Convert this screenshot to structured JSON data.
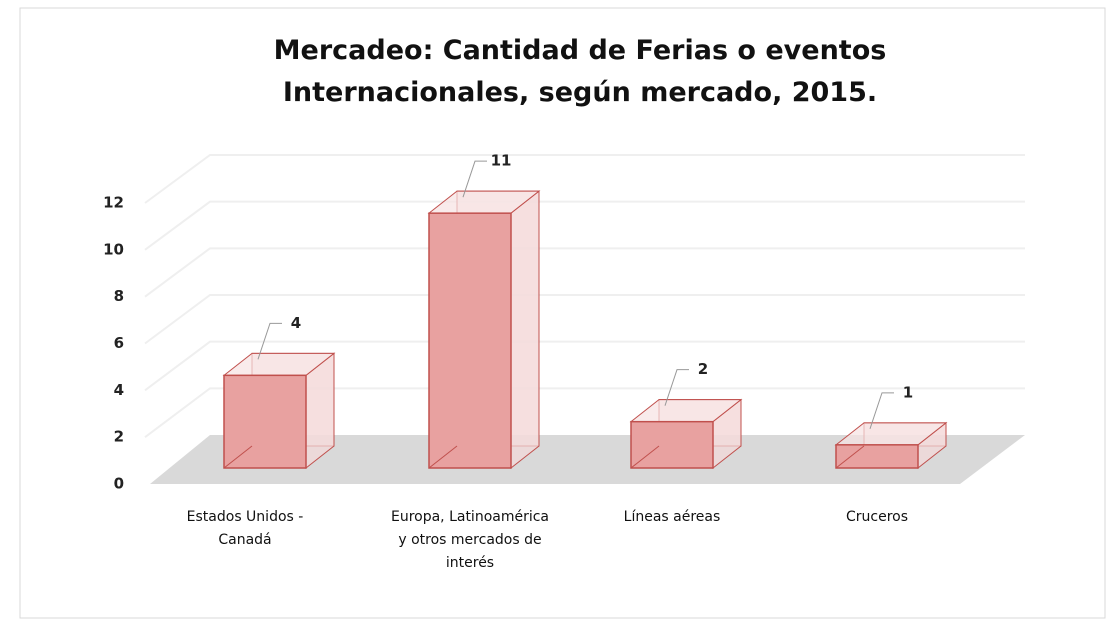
{
  "chart_data": {
    "type": "bar3d",
    "title": "Mercadeo: Cantidad de Ferias o eventos Internacionales, según mercado, 2015.",
    "categories": [
      "Estados Unidos - Canadá",
      "Europa, Latinoamérica y otros mercados de interés",
      "Líneas aéreas",
      "Cruceros"
    ],
    "values": [
      4,
      11,
      2,
      1
    ],
    "color": "#e8a1a0",
    "edge_color": "#c0504d",
    "ylim": [
      0,
      12
    ],
    "yticks": [
      0,
      2,
      4,
      6,
      8,
      10,
      12
    ],
    "grid": true
  }
}
